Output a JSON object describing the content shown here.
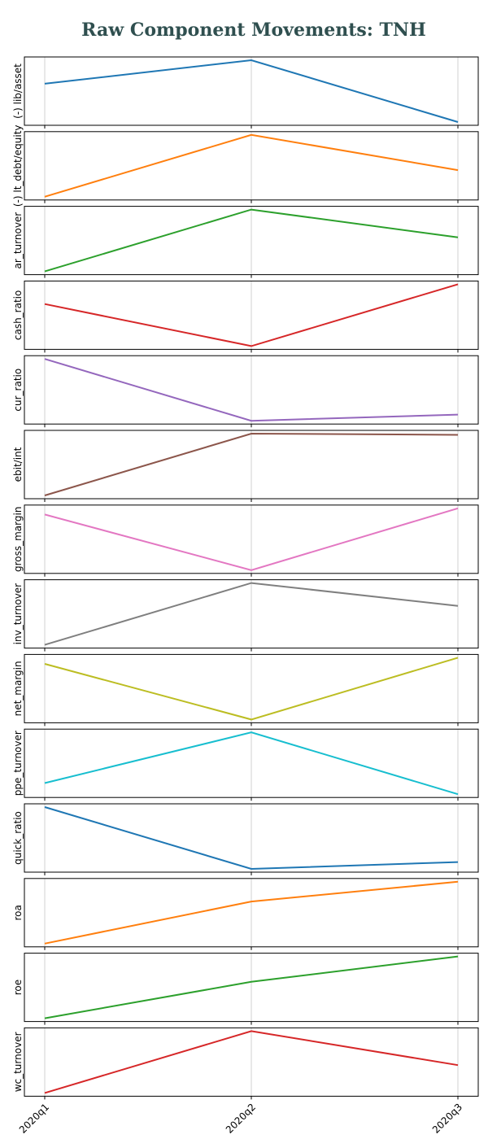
{
  "chart_data": {
    "type": "line",
    "title": "Raw Component Movements: TNH",
    "categories": [
      "2020q1",
      "2020q2",
      "2020q3"
    ],
    "grid": "vertical",
    "series": [
      {
        "name": "(-) lib/asset",
        "color": "#1f77b4",
        "values": [
          0.62,
          1.0,
          0.0
        ]
      },
      {
        "name": "(-) lt_debt/equity",
        "color": "#ff7f0e",
        "values": [
          0.0,
          1.0,
          0.43
        ]
      },
      {
        "name": "ar_turnover",
        "color": "#2ca02c",
        "values": [
          0.0,
          1.0,
          0.55
        ]
      },
      {
        "name": "cash_ratio",
        "color": "#d62728",
        "values": [
          0.68,
          0.0,
          1.0
        ]
      },
      {
        "name": "cur_ratio",
        "color": "#9467bd",
        "values": [
          1.0,
          0.0,
          0.1
        ]
      },
      {
        "name": "ebit/int",
        "color": "#8c564b",
        "values": [
          0.0,
          1.0,
          0.98
        ]
      },
      {
        "name": "gross_margin",
        "color": "#e377c2",
        "values": [
          0.9,
          0.0,
          1.0
        ]
      },
      {
        "name": "inv_turnover",
        "color": "#7f7f7f",
        "values": [
          0.0,
          1.0,
          0.63
        ]
      },
      {
        "name": "net_margin",
        "color": "#bcbd22",
        "values": [
          0.9,
          0.0,
          1.0
        ]
      },
      {
        "name": "ppe_turnover",
        "color": "#17becf",
        "values": [
          0.18,
          1.0,
          0.0
        ]
      },
      {
        "name": "quick_ratio",
        "color": "#1f77b4",
        "values": [
          1.0,
          0.0,
          0.11
        ]
      },
      {
        "name": "roa",
        "color": "#ff7f0e",
        "values": [
          0.0,
          0.68,
          1.0
        ]
      },
      {
        "name": "roe",
        "color": "#2ca02c",
        "values": [
          0.0,
          0.59,
          1.0
        ]
      },
      {
        "name": "wc_turnover",
        "color": "#d62728",
        "values": [
          0.0,
          1.0,
          0.45
        ]
      }
    ]
  }
}
